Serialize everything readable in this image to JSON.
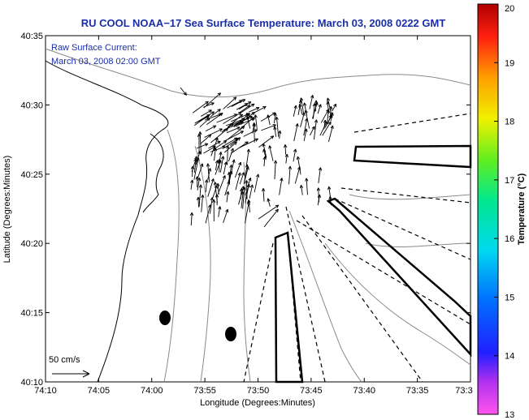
{
  "chart_data": {
    "type": "map",
    "title": "RU COOL  NOAA−17  Sea Surface Temperature:  March 03, 2008 0222 GMT",
    "xlabel": "Longitude (Degrees:Minutes)",
    "ylabel": "Latitude (Degrees:Minutes)",
    "x_ticks": [
      "74:10",
      "74:05",
      "74:00",
      "73:55",
      "73:50",
      "73:45",
      "73:40",
      "73:35",
      "73:3"
    ],
    "y_ticks": [
      "40:10",
      "40:15",
      "40:20",
      "40:25",
      "40:30",
      "40:35"
    ],
    "x_range_minutes_west": [
      10,
      -30
    ],
    "y_range_minutes": [
      10,
      35
    ],
    "legend": {
      "line1": "Raw Surface Current:",
      "line2": "March 03, 2008 02:00 GMT"
    },
    "scale_arrow_label": "50 cm/s",
    "colorbar": {
      "label": "Temperature (°C)",
      "range": [
        13,
        20
      ],
      "ticks": [
        "13",
        "14",
        "15",
        "16",
        "17",
        "18",
        "19",
        "20"
      ]
    }
  }
}
